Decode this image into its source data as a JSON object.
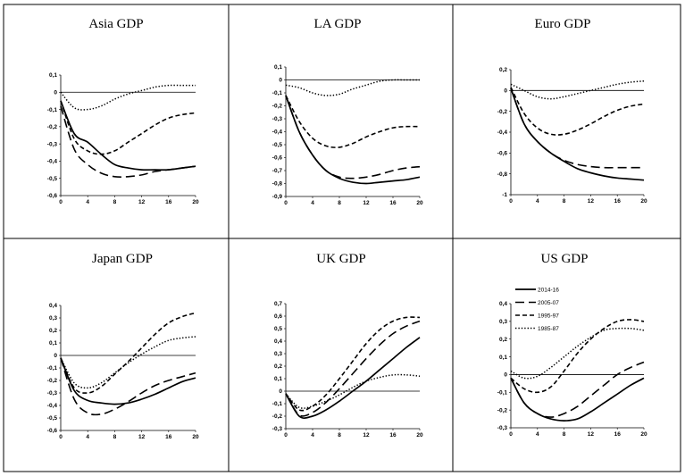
{
  "chart_data": [
    {
      "type": "line",
      "title": "Asia GDP",
      "x": [
        0,
        2,
        4,
        6,
        8,
        10,
        12,
        14,
        16,
        18,
        20
      ],
      "xticks": [
        0,
        4,
        8,
        12,
        16,
        20
      ],
      "ylim": [
        -0.6,
        0.1
      ],
      "yticks": [
        0.1,
        0,
        -0.1,
        -0.2,
        -0.3,
        -0.4,
        -0.5,
        -0.6
      ],
      "ytick_labels": [
        "0,1",
        "0",
        "-0,1",
        "-0,2",
        "-0,3",
        "-0,4",
        "-0,5",
        "-0,6"
      ],
      "series": [
        {
          "name": "2014-16",
          "values": [
            -0.05,
            -0.24,
            -0.29,
            -0.36,
            -0.42,
            -0.44,
            -0.45,
            -0.45,
            -0.45,
            -0.44,
            -0.43
          ]
        },
        {
          "name": "2005-07",
          "values": [
            -0.08,
            -0.33,
            -0.42,
            -0.47,
            -0.49,
            -0.49,
            -0.48,
            -0.46,
            -0.45,
            -0.44,
            -0.43
          ]
        },
        {
          "name": "1995-97",
          "values": [
            -0.05,
            -0.27,
            -0.34,
            -0.36,
            -0.34,
            -0.29,
            -0.24,
            -0.19,
            -0.15,
            -0.13,
            -0.12
          ]
        },
        {
          "name": "1985-87",
          "values": [
            0.0,
            -0.09,
            -0.1,
            -0.08,
            -0.04,
            -0.01,
            0.01,
            0.03,
            0.04,
            0.04,
            0.04
          ]
        }
      ]
    },
    {
      "type": "line",
      "title": "LA GDP",
      "x": [
        0,
        2,
        4,
        6,
        8,
        10,
        12,
        14,
        16,
        18,
        20
      ],
      "xticks": [
        0,
        4,
        8,
        12,
        16,
        20
      ],
      "ylim": [
        -0.9,
        0.1
      ],
      "yticks": [
        0.1,
        0,
        -0.1,
        -0.2,
        -0.3,
        -0.4,
        -0.5,
        -0.6,
        -0.7,
        -0.8,
        -0.9
      ],
      "ytick_labels": [
        "0,1",
        "0",
        "-0,1",
        "-0,2",
        "-0,3",
        "-0,4",
        "-0,5",
        "-0,6",
        "-0,7",
        "-0,8",
        "-0,9"
      ],
      "series": [
        {
          "name": "2014-16",
          "values": [
            -0.12,
            -0.4,
            -0.58,
            -0.7,
            -0.76,
            -0.79,
            -0.8,
            -0.79,
            -0.78,
            -0.77,
            -0.75
          ]
        },
        {
          "name": "2005-07",
          "values": [
            -0.12,
            -0.4,
            -0.58,
            -0.7,
            -0.75,
            -0.76,
            -0.75,
            -0.73,
            -0.7,
            -0.68,
            -0.67
          ]
        },
        {
          "name": "1995-97",
          "values": [
            -0.12,
            -0.32,
            -0.45,
            -0.51,
            -0.52,
            -0.49,
            -0.44,
            -0.4,
            -0.37,
            -0.36,
            -0.36
          ]
        },
        {
          "name": "1985-87",
          "values": [
            -0.04,
            -0.06,
            -0.1,
            -0.12,
            -0.11,
            -0.07,
            -0.04,
            -0.01,
            0.0,
            0.0,
            0.0
          ]
        }
      ]
    },
    {
      "type": "line",
      "title": "Euro GDP",
      "x": [
        0,
        2,
        4,
        6,
        8,
        10,
        12,
        14,
        16,
        18,
        20
      ],
      "xticks": [
        0,
        4,
        8,
        12,
        16,
        20
      ],
      "ylim": [
        -1.0,
        0.2
      ],
      "yticks": [
        0.2,
        0,
        -0.2,
        -0.4,
        -0.6,
        -0.8,
        -1
      ],
      "ytick_labels": [
        "0,2",
        "0",
        "-0,2",
        "-0,4",
        "-0,6",
        "-0,8",
        "-1"
      ],
      "series": [
        {
          "name": "2014-16",
          "values": [
            0.02,
            -0.32,
            -0.49,
            -0.6,
            -0.68,
            -0.75,
            -0.79,
            -0.82,
            -0.84,
            -0.85,
            -0.86
          ]
        },
        {
          "name": "2005-07",
          "values": [
            0.02,
            -0.32,
            -0.49,
            -0.6,
            -0.67,
            -0.71,
            -0.73,
            -0.74,
            -0.74,
            -0.74,
            -0.74
          ]
        },
        {
          "name": "1995-97",
          "values": [
            0.03,
            -0.22,
            -0.36,
            -0.42,
            -0.42,
            -0.38,
            -0.32,
            -0.25,
            -0.19,
            -0.15,
            -0.13
          ]
        },
        {
          "name": "1985-87",
          "values": [
            0.06,
            0.0,
            -0.06,
            -0.08,
            -0.06,
            -0.03,
            0.0,
            0.03,
            0.06,
            0.08,
            0.09
          ]
        }
      ]
    },
    {
      "type": "line",
      "title": "Japan GDP",
      "x": [
        0,
        2,
        4,
        6,
        8,
        10,
        12,
        14,
        16,
        18,
        20
      ],
      "xticks": [
        0,
        4,
        8,
        12,
        16,
        20
      ],
      "ylim": [
        -0.6,
        0.4
      ],
      "yticks": [
        0.4,
        0.3,
        0.2,
        0.1,
        0,
        -0.1,
        -0.2,
        -0.3,
        -0.4,
        -0.5,
        -0.6
      ],
      "ytick_labels": [
        "0,4",
        "0,3",
        "0,2",
        "0,1",
        "0",
        "-0,1",
        "-0,2",
        "-0,3",
        "-0,4",
        "-0,5",
        "-0,6"
      ],
      "series": [
        {
          "name": "2014-16",
          "values": [
            -0.02,
            -0.28,
            -0.36,
            -0.38,
            -0.39,
            -0.38,
            -0.35,
            -0.31,
            -0.26,
            -0.21,
            -0.18
          ]
        },
        {
          "name": "2005-07",
          "values": [
            -0.02,
            -0.35,
            -0.46,
            -0.47,
            -0.43,
            -0.37,
            -0.3,
            -0.24,
            -0.2,
            -0.17,
            -0.14
          ]
        },
        {
          "name": "1995-97",
          "values": [
            -0.02,
            -0.26,
            -0.3,
            -0.25,
            -0.15,
            -0.05,
            0.06,
            0.17,
            0.26,
            0.31,
            0.34
          ]
        },
        {
          "name": "1985-87",
          "values": [
            -0.02,
            -0.22,
            -0.26,
            -0.22,
            -0.14,
            -0.06,
            0.01,
            0.07,
            0.12,
            0.14,
            0.15
          ]
        }
      ]
    },
    {
      "type": "line",
      "title": "UK GDP",
      "x": [
        0,
        2,
        4,
        6,
        8,
        10,
        12,
        14,
        16,
        18,
        20
      ],
      "xticks": [
        0,
        4,
        8,
        12,
        16,
        20
      ],
      "ylim": [
        -0.3,
        0.7
      ],
      "yticks": [
        0.7,
        0.6,
        0.5,
        0.4,
        0.3,
        0.2,
        0.1,
        0,
        -0.1,
        -0.2,
        -0.3
      ],
      "ytick_labels": [
        "0,7",
        "0,6",
        "0,5",
        "0,4",
        "0,3",
        "0,2",
        "0,1",
        "0",
        "-0,1",
        "-0,2",
        "-0,3"
      ],
      "series": [
        {
          "name": "2014-16",
          "values": [
            -0.02,
            -0.2,
            -0.2,
            -0.15,
            -0.08,
            0.0,
            0.08,
            0.17,
            0.26,
            0.35,
            0.43
          ]
        },
        {
          "name": "2005-07",
          "values": [
            -0.02,
            -0.19,
            -0.17,
            -0.09,
            0.02,
            0.14,
            0.26,
            0.37,
            0.46,
            0.52,
            0.56
          ]
        },
        {
          "name": "1995-97",
          "values": [
            -0.02,
            -0.15,
            -0.12,
            -0.03,
            0.1,
            0.24,
            0.38,
            0.49,
            0.56,
            0.59,
            0.59
          ]
        },
        {
          "name": "1985-87",
          "values": [
            -0.02,
            -0.13,
            -0.12,
            -0.08,
            -0.03,
            0.03,
            0.08,
            0.11,
            0.13,
            0.13,
            0.12
          ]
        }
      ]
    },
    {
      "type": "line",
      "title": "US GDP",
      "x": [
        0,
        2,
        4,
        6,
        8,
        10,
        12,
        14,
        16,
        18,
        20
      ],
      "xticks": [
        0,
        4,
        8,
        12,
        16,
        20
      ],
      "ylim": [
        -0.3,
        0.4
      ],
      "yticks": [
        0.4,
        0.3,
        0.2,
        0.1,
        0,
        -0.1,
        -0.2,
        -0.3
      ],
      "ytick_labels": [
        "0,4",
        "0,3",
        "0,2",
        "0,1",
        "0",
        "-0,1",
        "-0,2",
        "-0,3"
      ],
      "legend_position": "top-left",
      "series": [
        {
          "name": "2014-16",
          "values": [
            -0.02,
            -0.16,
            -0.22,
            -0.25,
            -0.26,
            -0.25,
            -0.21,
            -0.16,
            -0.11,
            -0.06,
            -0.02
          ]
        },
        {
          "name": "2005-07",
          "values": [
            -0.02,
            -0.16,
            -0.22,
            -0.24,
            -0.22,
            -0.18,
            -0.12,
            -0.06,
            0.0,
            0.04,
            0.07
          ]
        },
        {
          "name": "1995-97",
          "values": [
            -0.02,
            -0.08,
            -0.1,
            -0.07,
            0.02,
            0.12,
            0.2,
            0.26,
            0.3,
            0.31,
            0.3
          ]
        },
        {
          "name": "1985-87",
          "values": [
            0.02,
            -0.02,
            -0.01,
            0.04,
            0.1,
            0.16,
            0.21,
            0.25,
            0.26,
            0.26,
            0.25
          ]
        }
      ]
    }
  ],
  "legend": [
    "2014-16",
    "2005-07",
    "1995-97",
    "1985-87"
  ]
}
